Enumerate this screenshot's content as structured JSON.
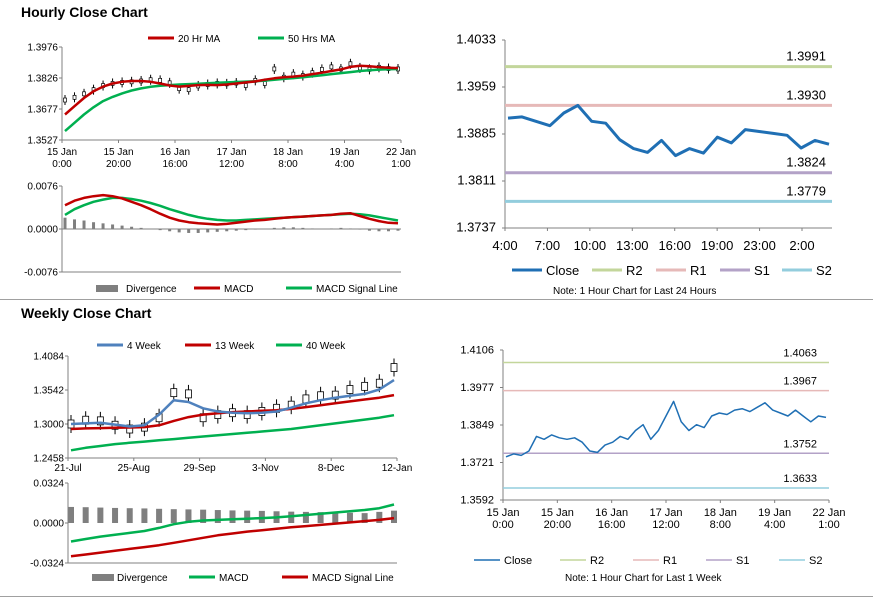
{
  "sections": {
    "hourly_title": "Hourly Close Chart",
    "weekly_title": "Weekly Close Chart"
  },
  "notes": {
    "hourly_levels": "Note: 1 Hour Chart for Last 24 Hours",
    "weekly_levels": "Note: 1 Hour Chart for Last 1 Week"
  },
  "colors": {
    "ma_red": "#c00000",
    "ma_green": "#00b050",
    "ma_blue": "#4f81bd",
    "close_blue": "#1f6fb4",
    "r2": "#c3d69b",
    "r1": "#e6b9b8",
    "s1": "#b3a2c7",
    "s2": "#93cddd",
    "divergence": "#7f7f7f"
  },
  "chart_data": [
    {
      "id": "hourly_price",
      "type": "line",
      "x_ticks": [
        [
          "15 Jan",
          "0:00"
        ],
        [
          "15 Jan",
          "20:00"
        ],
        [
          "16 Jan",
          "16:00"
        ],
        [
          "17 Jan",
          "12:00"
        ],
        [
          "18 Jan",
          "8:00"
        ],
        [
          "19 Jan",
          "4:00"
        ],
        [
          "22 Jan",
          "1:00"
        ]
      ],
      "y_ticks": [
        "1.3976",
        "1.3826",
        "1.3677",
        "1.3527"
      ],
      "ylim": [
        1.3527,
        1.3976
      ],
      "legend": [
        "20 Hr MA",
        "50 Hrs MA"
      ],
      "series": [
        {
          "name": "Close",
          "values": [
            1.372,
            1.3733,
            1.375,
            1.377,
            1.379,
            1.38,
            1.3805,
            1.3808,
            1.3812,
            1.3818,
            1.3815,
            1.3803,
            1.3775,
            1.377,
            1.3788,
            1.3795,
            1.38,
            1.3798,
            1.3802,
            1.379,
            1.3815,
            1.38,
            1.387,
            1.383,
            1.3845,
            1.3838,
            1.3852,
            1.3868,
            1.388,
            1.387,
            1.3895,
            1.3875,
            1.3868,
            1.3878,
            1.3872,
            1.387
          ]
        },
        {
          "name": "20 Hr MA",
          "values": [
            1.365,
            1.369,
            1.373,
            1.3762,
            1.3785,
            1.38,
            1.3808,
            1.3812,
            1.3812,
            1.3808,
            1.38,
            1.379,
            1.3785,
            1.3788,
            1.3792,
            1.3793,
            1.3792,
            1.3795,
            1.38,
            1.3805,
            1.381,
            1.3818,
            1.3825,
            1.383,
            1.3833,
            1.3838,
            1.3845,
            1.3852,
            1.386,
            1.3868,
            1.388,
            1.3885,
            1.3883,
            1.3879,
            1.3876,
            1.3874
          ]
        },
        {
          "name": "50 Hrs MA",
          "values": [
            1.357,
            1.361,
            1.365,
            1.3685,
            1.3715,
            1.3735,
            1.3752,
            1.3766,
            1.3776,
            1.3784,
            1.3789,
            1.3792,
            1.3795,
            1.3797,
            1.3799,
            1.3801,
            1.3803,
            1.3805,
            1.3807,
            1.3809,
            1.3811,
            1.3814,
            1.3818,
            1.3822,
            1.3826,
            1.383,
            1.3835,
            1.384,
            1.3845,
            1.385,
            1.3855,
            1.386,
            1.3864,
            1.3867,
            1.3869,
            1.387
          ]
        }
      ]
    },
    {
      "id": "hourly_macd",
      "type": "bar",
      "y_ticks": [
        "0.0076",
        "0.0000",
        "-0.0076"
      ],
      "ylim": [
        -0.0076,
        0.0076
      ],
      "legend": [
        "Divergence",
        "MACD",
        "MACD Signal Line"
      ],
      "series": [
        {
          "name": "Divergence",
          "values": [
            0.002,
            0.0017,
            0.0015,
            0.0012,
            0.001,
            0.0008,
            0.0006,
            0.0004,
            0.0002,
            0.0,
            -0.0002,
            -0.0004,
            -0.0006,
            -0.0007,
            -0.0007,
            -0.0006,
            -0.0005,
            -0.0004,
            -0.0003,
            -0.0002,
            -0.0001,
            0.0,
            0.0002,
            0.0003,
            0.0003,
            0.0002,
            0.0001,
            0.0,
            0.0001,
            0.0002,
            0.0001,
            -0.0001,
            -0.0003,
            -0.0004,
            -0.0004,
            -0.0003
          ]
        },
        {
          "name": "MACD",
          "values": [
            0.0042,
            0.005,
            0.0055,
            0.0058,
            0.006,
            0.0058,
            0.0054,
            0.0048,
            0.0042,
            0.0035,
            0.0027,
            0.002,
            0.0015,
            0.0012,
            0.001,
            0.0009,
            0.0008,
            0.0009,
            0.0011,
            0.0013,
            0.0015,
            0.0016,
            0.0018,
            0.002,
            0.0021,
            0.0022,
            0.0023,
            0.0024,
            0.0025,
            0.0027,
            0.0028,
            0.0023,
            0.0018,
            0.0014,
            0.0011,
            0.001
          ]
        },
        {
          "name": "MACD Signal Line",
          "values": [
            0.0025,
            0.0035,
            0.0042,
            0.0048,
            0.0052,
            0.0055,
            0.0055,
            0.0053,
            0.005,
            0.0046,
            0.0041,
            0.0035,
            0.003,
            0.0025,
            0.0021,
            0.0018,
            0.0016,
            0.0015,
            0.0015,
            0.0016,
            0.0017,
            0.0018,
            0.0019,
            0.002,
            0.0021,
            0.0022,
            0.0023,
            0.0024,
            0.0025,
            0.0026,
            0.0027,
            0.0026,
            0.0024,
            0.0021,
            0.0018,
            0.0015
          ]
        }
      ]
    },
    {
      "id": "hourly_levels",
      "type": "line",
      "x_ticks": [
        "4:00",
        "7:00",
        "10:00",
        "13:00",
        "16:00",
        "19:00",
        "23:00",
        "2:00"
      ],
      "y_ticks": [
        "1.4033",
        "1.3959",
        "1.3885",
        "1.3811",
        "1.3737"
      ],
      "ylim": [
        1.3737,
        1.4033
      ],
      "legend": [
        "Close",
        "R2",
        "R1",
        "S1",
        "S2"
      ],
      "levels": [
        {
          "name": "R2",
          "value": 1.3991,
          "label": "1.3991"
        },
        {
          "name": "R1",
          "value": 1.393,
          "label": "1.3930"
        },
        {
          "name": "S1",
          "value": 1.3824,
          "label": "1.3824"
        },
        {
          "name": "S2",
          "value": 1.3779,
          "label": "1.3779"
        }
      ],
      "series": [
        {
          "name": "Close",
          "values": [
            1.391,
            1.3912,
            1.3905,
            1.3898,
            1.3918,
            1.393,
            1.3905,
            1.3902,
            1.3876,
            1.3862,
            1.3856,
            1.3875,
            1.3851,
            1.3862,
            1.3855,
            1.388,
            1.3871,
            1.3892,
            1.3889,
            1.3886,
            1.3883,
            1.3863,
            1.3875,
            1.3869
          ]
        }
      ]
    },
    {
      "id": "weekly_price",
      "type": "line",
      "x_ticks": [
        "21-Jul",
        "25-Aug",
        "29-Sep",
        "3-Nov",
        "8-Dec",
        "12-Jan"
      ],
      "y_ticks": [
        "1.4084",
        "1.3542",
        "1.3000",
        "1.2458"
      ],
      "ylim": [
        1.2458,
        1.4084
      ],
      "legend": [
        "4 Week",
        "13 Week",
        "40 Week"
      ],
      "series": [
        {
          "name": "Close",
          "values": [
            1.3,
            1.306,
            1.305,
            1.298,
            1.292,
            1.295,
            1.31,
            1.35,
            1.348,
            1.31,
            1.315,
            1.318,
            1.315,
            1.32,
            1.325,
            1.33,
            1.34,
            1.345,
            1.346,
            1.355,
            1.36,
            1.365,
            1.39
          ]
        },
        {
          "name": "4 Week",
          "values": [
            1.3,
            1.301,
            1.302,
            1.299,
            1.296,
            1.298,
            1.315,
            1.338,
            1.335,
            1.325,
            1.32,
            1.318,
            1.317,
            1.318,
            1.32,
            1.326,
            1.333,
            1.338,
            1.342,
            1.345,
            1.348,
            1.355,
            1.37
          ]
        },
        {
          "name": "13 Week",
          "values": [
            1.292,
            1.293,
            1.2935,
            1.294,
            1.2945,
            1.295,
            1.298,
            1.305,
            1.311,
            1.315,
            1.317,
            1.319,
            1.32,
            1.321,
            1.322,
            1.324,
            1.327,
            1.33,
            1.333,
            1.336,
            1.339,
            1.342,
            1.346
          ]
        },
        {
          "name": "40 Week",
          "values": [
            1.258,
            1.262,
            1.265,
            1.268,
            1.27,
            1.272,
            1.274,
            1.276,
            1.278,
            1.28,
            1.282,
            1.284,
            1.286,
            1.288,
            1.29,
            1.292,
            1.295,
            1.298,
            1.301,
            1.304,
            1.307,
            1.31,
            1.314
          ]
        }
      ]
    },
    {
      "id": "weekly_macd",
      "type": "bar",
      "y_ticks": [
        "0.0324",
        "0.0000",
        "-0.0324"
      ],
      "ylim": [
        -0.0324,
        0.0324
      ],
      "legend": [
        "Divergence",
        "MACD",
        "MACD Signal Line"
      ],
      "series": [
        {
          "name": "Divergence",
          "values": [
            0.013,
            0.0128,
            0.0125,
            0.0122,
            0.012,
            0.0118,
            0.0115,
            0.0112,
            0.011,
            0.0108,
            0.0105,
            0.0102,
            0.01,
            0.0098,
            0.0095,
            0.0092,
            0.009,
            0.0088,
            0.0085,
            0.0083,
            0.008,
            0.009,
            0.01
          ]
        },
        {
          "name": "MACD",
          "values": [
            -0.015,
            -0.013,
            -0.011,
            -0.0095,
            -0.008,
            -0.0065,
            -0.004,
            -0.001,
            0.001,
            0.002,
            0.0025,
            0.003,
            0.0035,
            0.004,
            0.0045,
            0.0055,
            0.0065,
            0.0075,
            0.0085,
            0.0095,
            0.0105,
            0.012,
            0.015
          ]
        },
        {
          "name": "MACD Signal Line",
          "values": [
            -0.027,
            -0.0255,
            -0.024,
            -0.0225,
            -0.021,
            -0.0195,
            -0.018,
            -0.016,
            -0.014,
            -0.012,
            -0.01,
            -0.0085,
            -0.007,
            -0.0058,
            -0.0046,
            -0.0035,
            -0.0025,
            -0.0015,
            -0.0005,
            0.0005,
            0.0015,
            0.0025,
            0.004
          ]
        }
      ]
    },
    {
      "id": "weekly_levels",
      "type": "line",
      "x_ticks": [
        [
          "15 Jan",
          "0:00"
        ],
        [
          "15 Jan",
          "20:00"
        ],
        [
          "16 Jan",
          "16:00"
        ],
        [
          "17 Jan",
          "12:00"
        ],
        [
          "18 Jan",
          "8:00"
        ],
        [
          "19 Jan",
          "4:00"
        ],
        [
          "22 Jan",
          "1:00"
        ]
      ],
      "y_ticks": [
        "1.4106",
        "1.3977",
        "1.3849",
        "1.3721",
        "1.3592"
      ],
      "ylim": [
        1.3592,
        1.4106
      ],
      "legend": [
        "Close",
        "R2",
        "R1",
        "S1",
        "S2"
      ],
      "levels": [
        {
          "name": "R2",
          "value": 1.4063,
          "label": "1.4063"
        },
        {
          "name": "R1",
          "value": 1.3967,
          "label": "1.3967"
        },
        {
          "name": "S1",
          "value": 1.3752,
          "label": "1.3752"
        },
        {
          "name": "S2",
          "value": 1.3633,
          "label": "1.3633"
        }
      ],
      "series": [
        {
          "name": "Close",
          "values": [
            1.374,
            1.375,
            1.3745,
            1.376,
            1.381,
            1.38,
            1.3815,
            1.3805,
            1.38,
            1.3805,
            1.379,
            1.376,
            1.3755,
            1.378,
            1.379,
            1.381,
            1.38,
            1.383,
            1.385,
            1.38,
            1.383,
            1.388,
            1.393,
            1.386,
            1.383,
            1.385,
            1.384,
            1.388,
            1.389,
            1.3885,
            1.39,
            1.3905,
            1.3895,
            1.391,
            1.3925,
            1.39,
            1.389,
            1.388,
            1.39,
            1.388,
            1.386,
            1.388,
            1.3875
          ]
        }
      ]
    }
  ]
}
